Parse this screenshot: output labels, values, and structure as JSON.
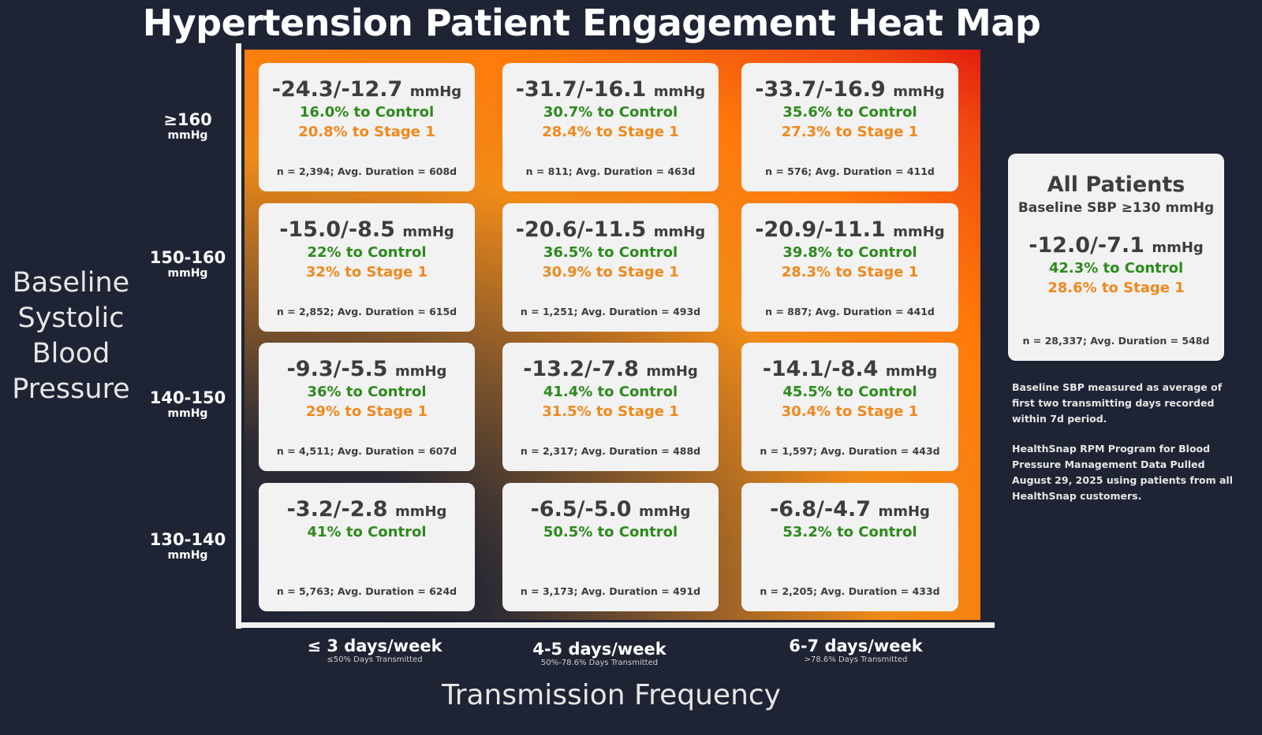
{
  "chart_data": {
    "type": "heatmap",
    "title": "Hypertension Patient Engagement Heat Map",
    "ylabel": "Baseline Systolic Blood Pressure",
    "xlabel": "Transmission Frequency",
    "rows": [
      {
        "label": "≥160",
        "unit": "mmHg"
      },
      {
        "label": "150-160",
        "unit": "mmHg"
      },
      {
        "label": "140-150",
        "unit": "mmHg"
      },
      {
        "label": "130-140",
        "unit": "mmHg"
      }
    ],
    "columns": [
      {
        "label": "≤ 3 days/week",
        "sub": "≤50% Days Transmitted"
      },
      {
        "label": "4-5 days/week",
        "sub": "50%-78.6% Days Transmitted"
      },
      {
        "label": "6-7 days/week",
        "sub": ">78.6% Days Transmitted"
      }
    ],
    "cells": [
      [
        {
          "bp": "-24.3/-12.7",
          "control": "16.0% to Control",
          "stage1": "20.8% to Stage 1",
          "meta": "n = 2,394; Avg. Duration = 608d"
        },
        {
          "bp": "-31.7/-16.1",
          "control": "30.7% to Control",
          "stage1": "28.4% to Stage 1",
          "meta": "n = 811; Avg. Duration = 463d"
        },
        {
          "bp": "-33.7/-16.9",
          "control": "35.6% to Control",
          "stage1": "27.3% to Stage 1",
          "meta": "n = 576; Avg. Duration = 411d"
        }
      ],
      [
        {
          "bp": "-15.0/-8.5",
          "control": "22% to Control",
          "stage1": "32% to Stage 1",
          "meta": "n = 2,852; Avg. Duration = 615d"
        },
        {
          "bp": "-20.6/-11.5",
          "control": "36.5% to Control",
          "stage1": "30.9% to Stage 1",
          "meta": "n = 1,251; Avg. Duration = 493d"
        },
        {
          "bp": "-20.9/-11.1",
          "control": "39.8% to Control",
          "stage1": "28.3% to Stage 1",
          "meta": "n = 887; Avg. Duration = 441d"
        }
      ],
      [
        {
          "bp": "-9.3/-5.5",
          "control": "36% to Control",
          "stage1": "29% to Stage 1",
          "meta": "n = 4,511; Avg. Duration = 607d"
        },
        {
          "bp": "-13.2/-7.8",
          "control": "41.4% to Control",
          "stage1": "31.5% to Stage 1",
          "meta": "n = 2,317; Avg. Duration = 488d"
        },
        {
          "bp": "-14.1/-8.4",
          "control": "45.5% to Control",
          "stage1": "30.4% to Stage 1",
          "meta": "n = 1,597; Avg. Duration = 443d"
        }
      ],
      [
        {
          "bp": "-3.2/-2.8",
          "control": "41% to Control",
          "stage1": "",
          "meta": "n = 5,763; Avg. Duration = 624d"
        },
        {
          "bp": "-6.5/-5.0",
          "control": "50.5% to Control",
          "stage1": "",
          "meta": "n = 3,173; Avg. Duration = 491d"
        },
        {
          "bp": "-6.8/-4.7",
          "control": "53.2% to Control",
          "stage1": "",
          "meta": "n = 2,205; Avg. Duration = 433d"
        }
      ]
    ],
    "unit": "mmHg",
    "all_patients": {
      "title": "All Patients",
      "subtitle": "Baseline SBP ≥130 mmHg",
      "bp": "-12.0/-7.1",
      "control": "42.3% to Control",
      "stage1": "28.6% to Stage 1",
      "meta": "n = 28,337; Avg. Duration = 548d"
    },
    "notes": [
      "Baseline SBP measured as average of first two transmitting days recorded within 7d period.",
      "HealthSnap RPM Program for Blood Pressure Management Data Pulled August 29, 2025 using patients from all HealthSnap customers."
    ]
  },
  "colors": {
    "control": "#2c8a1c",
    "stage1": "#f0881c",
    "background": "#1f2435"
  }
}
